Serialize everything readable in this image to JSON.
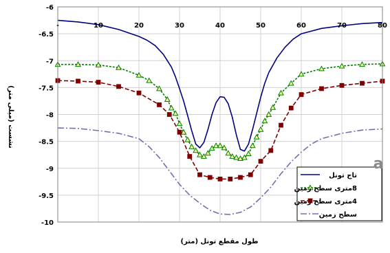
{
  "chart_data": {
    "type": "line",
    "title": "",
    "xlabel": "طول مقطع تونل (متر)",
    "ylabel": "نشست (میلی متر)",
    "xlim": [
      0,
      80
    ],
    "ylim": [
      -10,
      -6
    ],
    "x_ticks": [
      10,
      20,
      30,
      40,
      50,
      60,
      70,
      80
    ],
    "x_tick_labels": [
      "10",
      "20",
      "30",
      "40",
      "50",
      "60",
      "70",
      "80"
    ],
    "y_ticks": [
      -6,
      -6.5,
      -7,
      -7.5,
      -8,
      -8.5,
      -9,
      -9.5,
      -10
    ],
    "y_tick_labels": [
      "-6",
      "-6.5",
      "-7",
      "-7.5",
      "-8",
      "-8.5",
      "-9",
      "-9.5",
      "-10"
    ],
    "grid": true,
    "legend_position": "bottom-right",
    "panel_label": "a",
    "series": [
      {
        "name": "تاج تونل",
        "color": "#000080",
        "style": "solid",
        "marker": "none",
        "x": [
          0,
          5,
          10,
          15,
          20,
          22,
          24,
          26,
          28,
          29,
          30,
          31,
          32,
          33,
          34,
          35,
          36,
          37,
          38,
          39,
          40,
          41,
          42,
          43,
          44,
          45,
          46,
          47,
          48,
          49,
          50,
          51,
          52,
          54,
          56,
          58,
          60,
          65,
          70,
          75,
          80
        ],
        "y": [
          -6.25,
          -6.28,
          -6.33,
          -6.42,
          -6.55,
          -6.62,
          -6.72,
          -6.88,
          -7.12,
          -7.3,
          -7.52,
          -7.75,
          -8.02,
          -8.3,
          -8.55,
          -8.62,
          -8.52,
          -8.28,
          -8.0,
          -7.78,
          -7.67,
          -7.68,
          -7.8,
          -8.05,
          -8.38,
          -8.65,
          -8.68,
          -8.55,
          -8.28,
          -7.98,
          -7.68,
          -7.42,
          -7.22,
          -6.95,
          -6.75,
          -6.6,
          -6.5,
          -6.4,
          -6.35,
          -6.31,
          -6.29
        ]
      },
      {
        "name": "8متری سطح زمین",
        "color": "#008000",
        "style": "dotted",
        "marker": "triangle",
        "x": [
          0,
          5,
          10,
          15,
          20,
          22.5,
          25,
          27,
          28,
          29,
          30,
          31,
          32,
          33,
          34,
          35,
          36,
          37,
          38,
          39,
          40,
          41,
          42,
          43,
          44,
          45,
          46,
          47,
          48,
          49,
          50,
          51,
          52,
          53,
          55,
          57.5,
          60,
          65,
          70,
          75,
          80
        ],
        "y": [
          -7.07,
          -7.07,
          -7.08,
          -7.13,
          -7.27,
          -7.37,
          -7.52,
          -7.72,
          -7.88,
          -7.98,
          -8.17,
          -8.33,
          -8.47,
          -8.6,
          -8.67,
          -8.75,
          -8.78,
          -8.72,
          -8.63,
          -8.58,
          -8.58,
          -8.62,
          -8.72,
          -8.78,
          -8.8,
          -8.82,
          -8.8,
          -8.73,
          -8.58,
          -8.42,
          -8.28,
          -8.12,
          -8.0,
          -7.87,
          -7.6,
          -7.42,
          -7.25,
          -7.15,
          -7.1,
          -7.07,
          -7.06
        ]
      },
      {
        "name": "4متری سطح زمین",
        "color": "#800000",
        "style": "dashed",
        "marker": "square",
        "x": [
          0,
          5,
          10,
          15,
          20,
          25,
          27.5,
          30,
          32.5,
          35,
          37.5,
          40,
          42.5,
          45,
          47.5,
          50,
          52.5,
          55,
          57.5,
          60,
          65,
          70,
          75,
          80
        ],
        "y": [
          -7.37,
          -7.38,
          -7.4,
          -7.48,
          -7.6,
          -7.82,
          -8.0,
          -8.33,
          -8.78,
          -9.12,
          -9.17,
          -9.2,
          -9.2,
          -9.17,
          -9.12,
          -8.87,
          -8.67,
          -8.2,
          -7.88,
          -7.63,
          -7.52,
          -7.46,
          -7.42,
          -7.38
        ]
      },
      {
        "name": "سطح زمین",
        "color": "#7070b0",
        "style": "dash-dot",
        "marker": "none",
        "x": [
          0,
          5,
          10,
          15,
          20,
          22.5,
          25,
          27.5,
          30,
          32.5,
          35,
          37.5,
          40,
          42.5,
          45,
          47.5,
          50,
          52.5,
          55,
          57.5,
          60,
          62.5,
          65,
          70,
          75,
          80
        ],
        "y": [
          -8.25,
          -8.26,
          -8.3,
          -8.35,
          -8.45,
          -8.6,
          -8.8,
          -9.05,
          -9.3,
          -9.5,
          -9.65,
          -9.78,
          -9.85,
          -9.86,
          -9.82,
          -9.72,
          -9.55,
          -9.35,
          -9.1,
          -8.88,
          -8.7,
          -8.55,
          -8.45,
          -8.35,
          -8.29,
          -8.27
        ]
      }
    ]
  }
}
